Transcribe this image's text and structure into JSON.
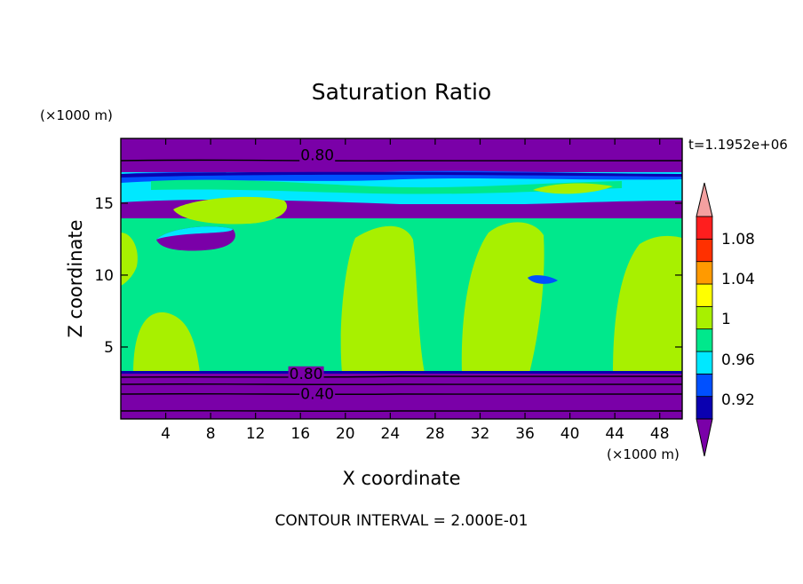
{
  "chart_data": {
    "type": "contour",
    "title": "Saturation Ratio",
    "xlabel": "X coordinate",
    "ylabel": "Z coordinate",
    "x_unit": "(×1000 m)",
    "y_unit": "(×1000 m)",
    "xlim": [
      0,
      50
    ],
    "ylim": [
      0,
      19.5
    ],
    "x_ticks": [
      4,
      8,
      12,
      16,
      20,
      24,
      28,
      32,
      36,
      40,
      44,
      48
    ],
    "y_ticks": [
      5,
      10,
      15
    ],
    "time_label": "t=1.1952e+06",
    "contour_interval_text": "CONTOUR INTERVAL = 2.000E-01",
    "contour_labels": [
      {
        "text": "0.80",
        "x": 17.5,
        "z": 18.3
      },
      {
        "text": "0.80",
        "x": 16.5,
        "z": 3.1
      },
      {
        "text": "0.40",
        "x": 17.5,
        "z": 1.7
      }
    ],
    "colorbar": {
      "ticks": [
        "1.08",
        "1.04",
        "1",
        "0.96",
        "0.92"
      ],
      "levels": [
        {
          "value": 0.92,
          "color": "#7a00a8"
        },
        {
          "value": 0.94,
          "color": "#0a00b0"
        },
        {
          "value": 0.96,
          "color": "#0050ff"
        },
        {
          "value": 0.98,
          "color": "#00e8ff"
        },
        {
          "value": 1.0,
          "color": "#00e88c"
        },
        {
          "value": 1.02,
          "color": "#a8f000"
        },
        {
          "value": 1.04,
          "color": "#ffff00"
        },
        {
          "value": 1.06,
          "color": "#ff9a00"
        },
        {
          "value": 1.08,
          "color": "#ff3000"
        },
        {
          "value": 1.1,
          "color": "#ff1e1e"
        },
        {
          "value": 1.12,
          "color": "#f4a0a0"
        }
      ]
    },
    "colors": {
      "purple": "#7a00a8",
      "dark_blue": "#0a00b0",
      "blue": "#0050ff",
      "cyan": "#00e8ff",
      "green": "#00e88c",
      "lime": "#a8f000"
    }
  }
}
